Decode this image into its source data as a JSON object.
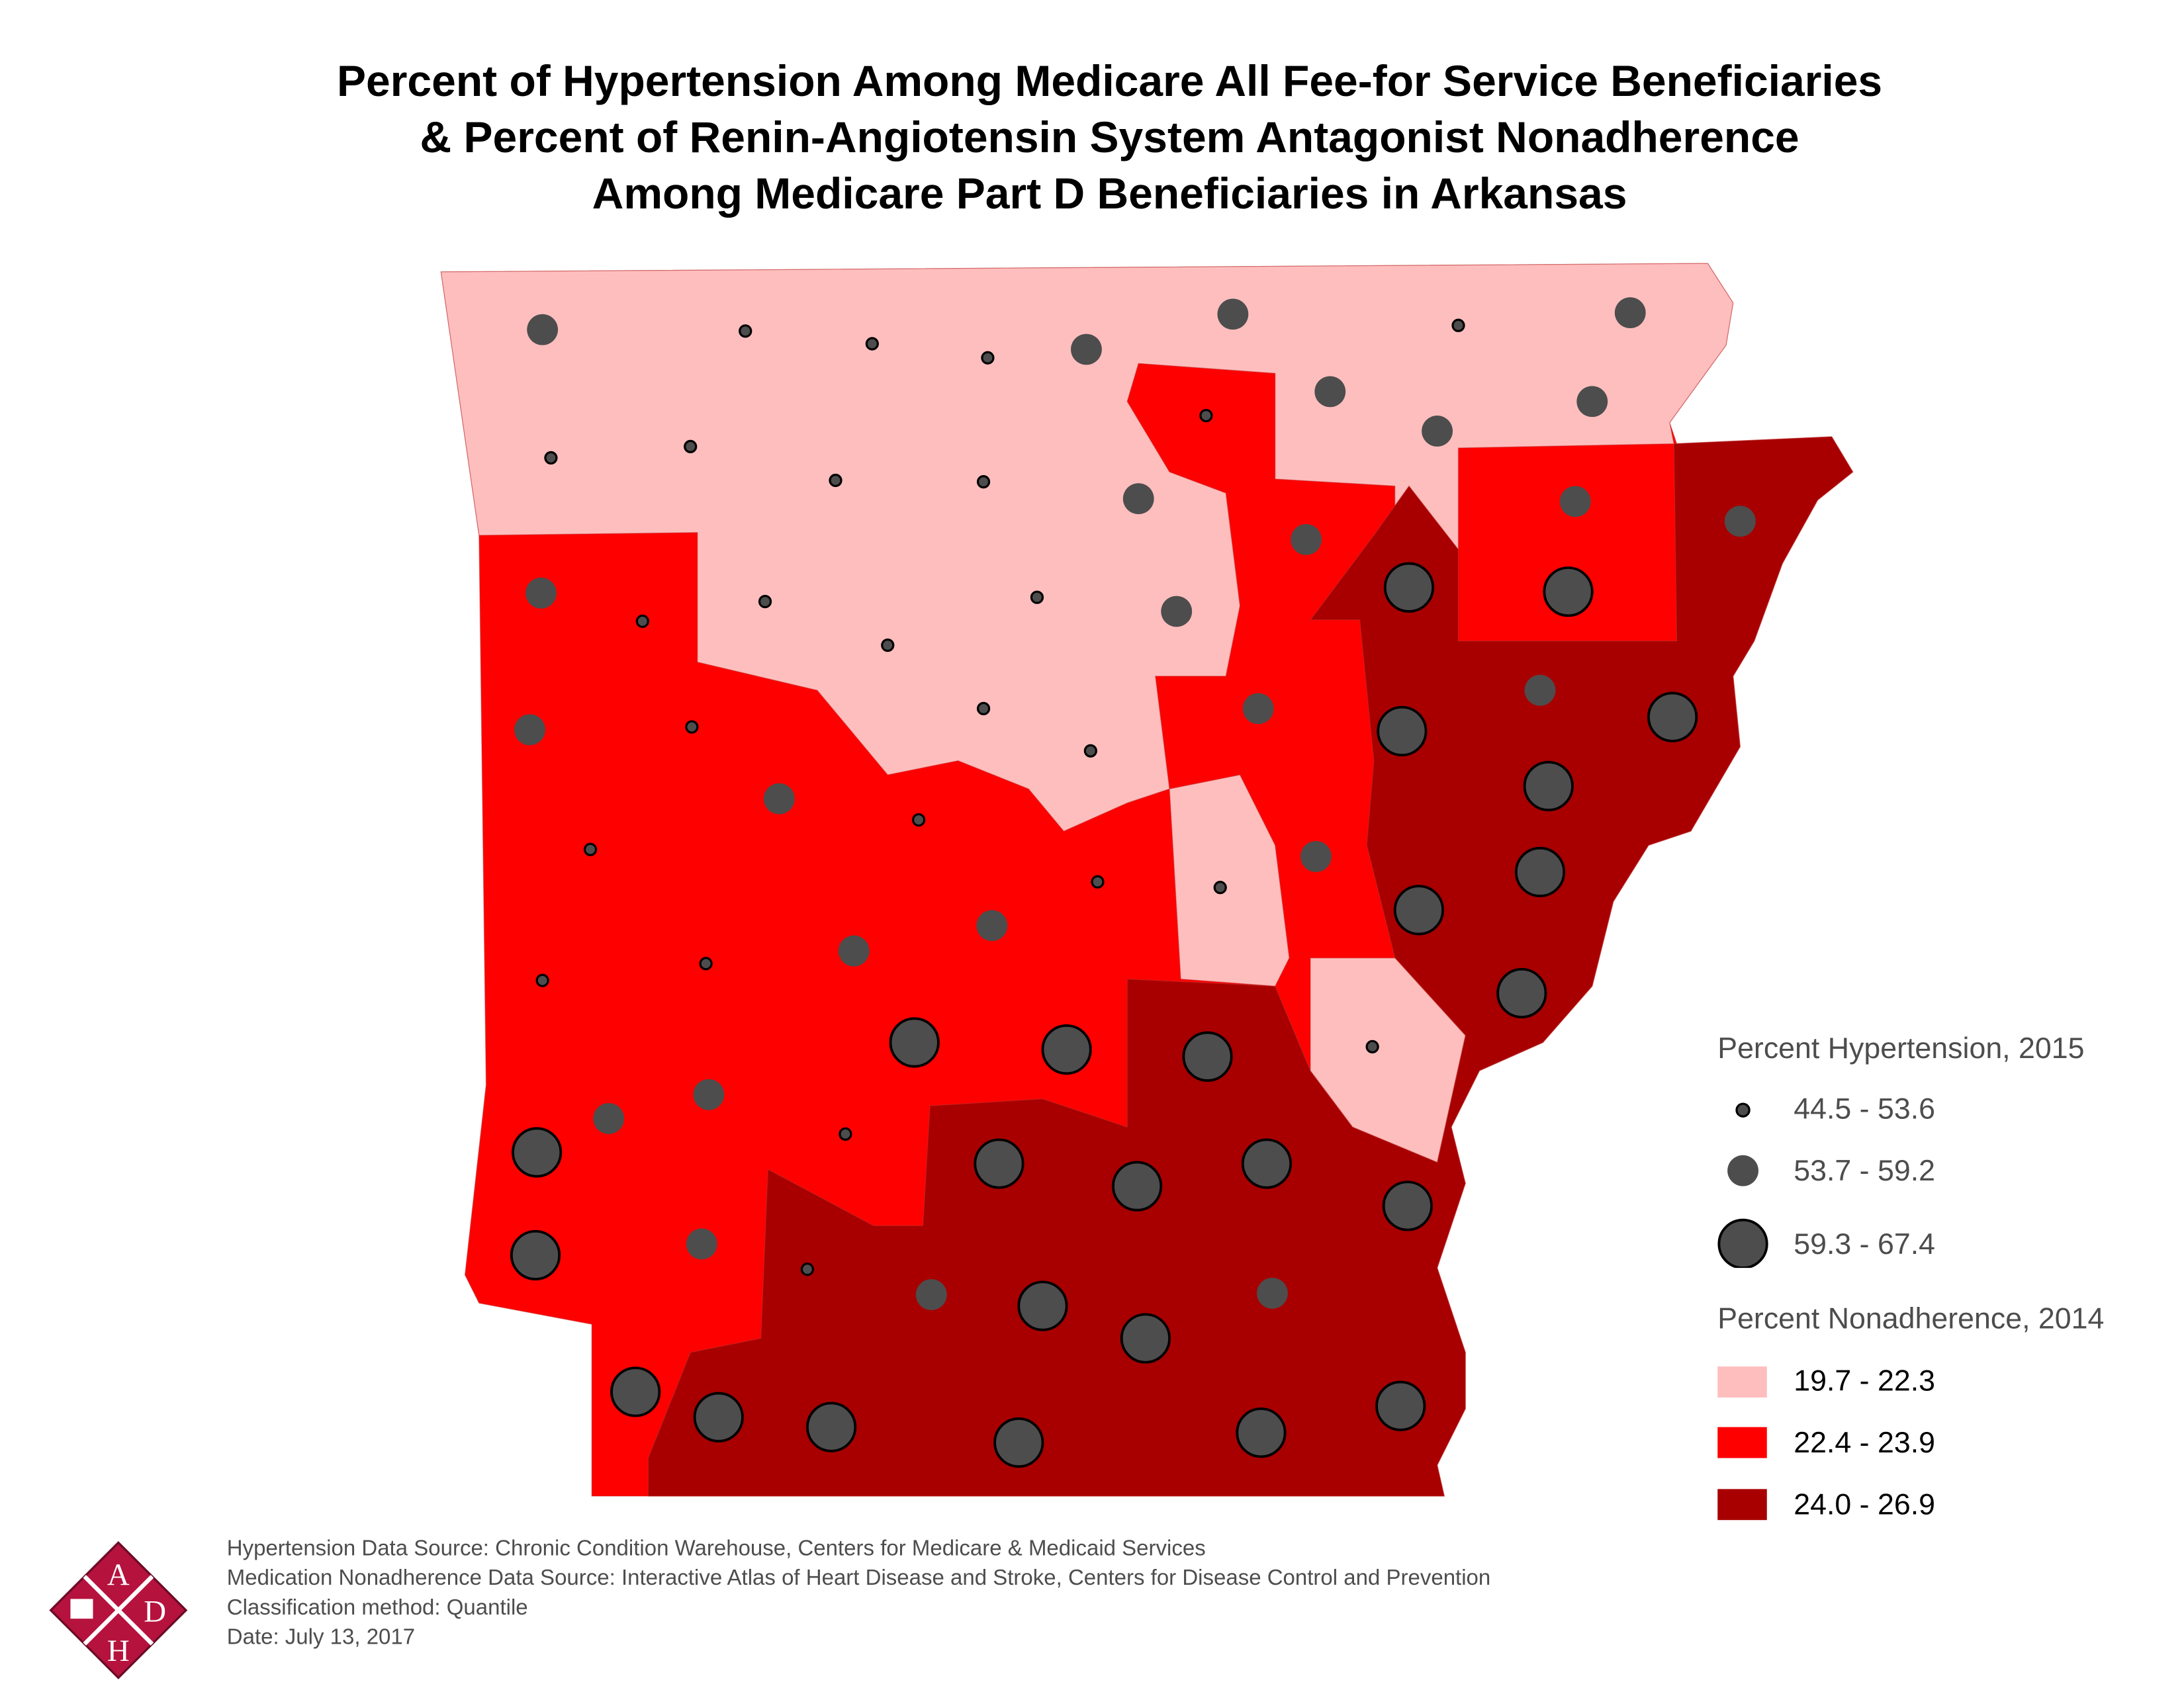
{
  "title": {
    "line1": "Percent of Hypertension Among Medicare All Fee-for Service Beneficiaries",
    "line2": "& Percent of Renin-Angiotensin System Antagonist Nonadherence",
    "line3": "Among Medicare Part D Beneficiaries in Arkansas"
  },
  "legend": {
    "hypertension": {
      "title": "Percent Hypertension, 2015",
      "classes": [
        "44.5 - 53.6",
        "53.7 - 59.2",
        "59.3 - 67.4"
      ]
    },
    "nonadherence": {
      "title": "Percent Nonadherence, 2014",
      "classes": [
        "19.7 - 22.3",
        "22.4 - 23.9",
        "24.0 - 26.9"
      ],
      "colors": [
        "#ffbebe",
        "#ff0000",
        "#a80000"
      ]
    }
  },
  "marker_color": "#4d4d4d",
  "county_markers_hypertension_class": [
    1,
    0,
    0,
    0,
    1,
    1,
    0,
    1,
    0,
    0,
    0,
    0,
    1,
    0,
    1,
    1,
    1,
    1,
    1,
    1,
    2,
    2,
    1,
    0,
    0,
    0,
    1,
    0,
    1,
    0,
    0,
    0,
    1,
    2,
    1,
    2,
    2,
    1,
    0,
    0,
    0,
    0,
    1,
    2,
    2,
    1,
    1,
    0,
    0,
    2,
    2,
    2,
    2,
    0,
    1,
    1,
    2,
    0,
    2,
    2,
    2,
    2,
    2,
    1,
    0,
    1,
    2,
    2,
    1,
    2,
    2,
    2,
    2,
    2,
    2
  ],
  "footer": {
    "line1": "Hypertension Data Source: Chronic Condition Warehouse, Centers for Medicare & Medicaid Services",
    "line2": "Medication Nonadherence Data Source: Interactive Atlas of Heart Disease and Stroke, Centers for Disease Control and Prevention",
    "line3": "Classification method: Quantile",
    "line4": "Date: July 13, 2017"
  },
  "logo": {
    "letters": "ADH"
  }
}
